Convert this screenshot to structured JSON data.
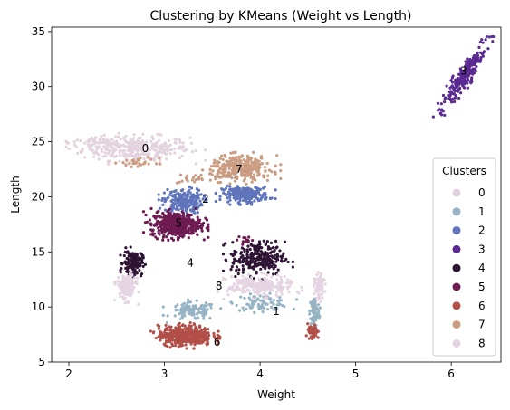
{
  "chart_data": {
    "type": "scatter",
    "title": "Clustering by KMeans (Weight vs Length)",
    "xlabel": "Weight",
    "ylabel": "Length",
    "xlim": [
      1.82,
      6.52
    ],
    "ylim": [
      5,
      35.4
    ],
    "xticks": [
      2,
      3,
      4,
      5,
      6
    ],
    "yticks": [
      5,
      10,
      15,
      20,
      25,
      30,
      35
    ],
    "legend": {
      "title": "Clusters",
      "placement": "lower-right"
    },
    "series": [
      {
        "name": "0",
        "color": "#e3d3de"
      },
      {
        "name": "1",
        "color": "#97b4c5"
      },
      {
        "name": "2",
        "color": "#5f74bb"
      },
      {
        "name": "3",
        "color": "#5a2a92"
      },
      {
        "name": "4",
        "color": "#2f1435"
      },
      {
        "name": "5",
        "color": "#6e1b52"
      },
      {
        "name": "6",
        "color": "#b14f48"
      },
      {
        "name": "7",
        "color": "#ca9c82"
      },
      {
        "name": "8",
        "color": "#e5d5e3"
      }
    ],
    "blobs": [
      {
        "cluster": "0",
        "cx": 2.7,
        "cy": 24.4,
        "sx": 0.28,
        "sy": 0.55,
        "n": 320,
        "spread": 1.0
      },
      {
        "cluster": "0",
        "cx": 2.3,
        "cy": 24.9,
        "sx": 0.15,
        "sy": 0.3,
        "n": 40,
        "spread": 1.0
      },
      {
        "cluster": "1",
        "cx": 3.3,
        "cy": 9.6,
        "sx": 0.12,
        "sy": 0.4,
        "n": 110,
        "spread": 1.0
      },
      {
        "cluster": "1",
        "cx": 4.02,
        "cy": 10.4,
        "sx": 0.14,
        "sy": 0.35,
        "n": 90,
        "spread": 1.0
      },
      {
        "cluster": "1",
        "cx": 4.57,
        "cy": 9.6,
        "sx": 0.025,
        "sy": 0.7,
        "n": 90,
        "spread": 1.0
      },
      {
        "cluster": "2",
        "cx": 3.2,
        "cy": 19.6,
        "sx": 0.1,
        "sy": 0.55,
        "n": 220,
        "spread": 1.0
      },
      {
        "cluster": "2",
        "cx": 3.85,
        "cy": 20.2,
        "sx": 0.12,
        "sy": 0.35,
        "n": 220,
        "spread": 1.0
      },
      {
        "cluster": "3",
        "cx": 6.13,
        "cy": 30.9,
        "sx": 0.045,
        "sy": 1.4,
        "n": 260,
        "spread": 1.0,
        "slope": 14
      },
      {
        "cluster": "4",
        "cx": 2.67,
        "cy": 14.0,
        "sx": 0.05,
        "sy": 0.55,
        "n": 160,
        "spread": 1.0
      },
      {
        "cluster": "4",
        "cx": 3.98,
        "cy": 14.4,
        "sx": 0.14,
        "sy": 0.75,
        "n": 260,
        "spread": 1.0
      },
      {
        "cluster": "5",
        "cx": 3.12,
        "cy": 17.5,
        "sx": 0.13,
        "sy": 0.55,
        "n": 480,
        "spread": 1.0
      },
      {
        "cluster": "5",
        "cx": 3.85,
        "cy": 16.1,
        "sx": 0.04,
        "sy": 0.2,
        "n": 15,
        "spread": 1.0
      },
      {
        "cluster": "6",
        "cx": 3.22,
        "cy": 7.4,
        "sx": 0.14,
        "sy": 0.45,
        "n": 420,
        "spread": 1.0
      },
      {
        "cluster": "6",
        "cx": 4.55,
        "cy": 7.7,
        "sx": 0.025,
        "sy": 0.35,
        "n": 60,
        "spread": 1.0
      },
      {
        "cluster": "7",
        "cx": 3.8,
        "cy": 22.6,
        "sx": 0.16,
        "sy": 0.55,
        "n": 320,
        "spread": 1.0
      },
      {
        "cluster": "7",
        "cx": 2.75,
        "cy": 23.1,
        "sx": 0.1,
        "sy": 0.2,
        "n": 30,
        "spread": 1.0
      },
      {
        "cluster": "7",
        "cx": 3.3,
        "cy": 21.6,
        "sx": 0.08,
        "sy": 0.2,
        "n": 20,
        "spread": 1.0
      },
      {
        "cluster": "8",
        "cx": 2.6,
        "cy": 11.8,
        "sx": 0.05,
        "sy": 0.6,
        "n": 150,
        "spread": 1.0
      },
      {
        "cluster": "8",
        "cx": 4.0,
        "cy": 11.9,
        "sx": 0.17,
        "sy": 0.45,
        "n": 240,
        "spread": 1.0
      },
      {
        "cluster": "8",
        "cx": 4.62,
        "cy": 11.8,
        "sx": 0.025,
        "sy": 0.55,
        "n": 90,
        "spread": 1.0
      }
    ],
    "annotations": [
      {
        "text": "0",
        "x": 2.8,
        "y": 24.4
      },
      {
        "text": "1",
        "x": 4.17,
        "y": 9.6
      },
      {
        "text": "2",
        "x": 3.43,
        "y": 19.8
      },
      {
        "text": "3",
        "x": 6.13,
        "y": 31.4
      },
      {
        "text": "4",
        "x": 3.27,
        "y": 14.0
      },
      {
        "text": "5",
        "x": 3.15,
        "y": 17.6
      },
      {
        "text": "6",
        "x": 3.55,
        "y": 6.8
      },
      {
        "text": "7",
        "x": 3.78,
        "y": 22.5
      },
      {
        "text": "8",
        "x": 3.57,
        "y": 11.9
      }
    ]
  }
}
